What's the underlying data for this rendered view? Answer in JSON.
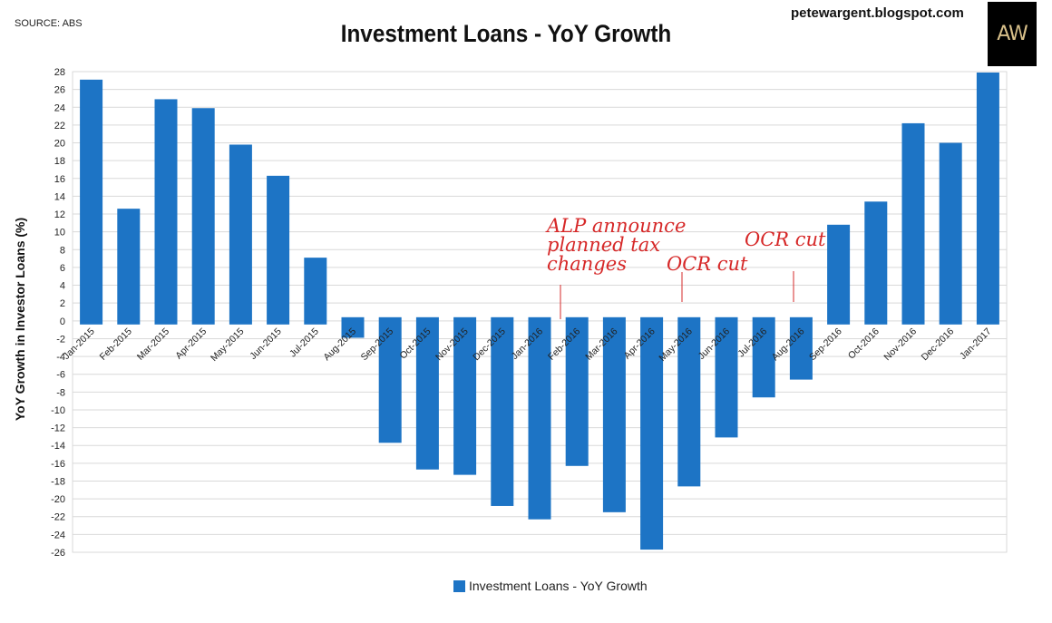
{
  "header": {
    "source": "SOURCE: ABS",
    "title": "Investment Loans - YoY Growth",
    "blog": "petewargent.blogspot.com",
    "logo_text": "AW"
  },
  "colors": {
    "bar": "#1d74c5",
    "annotation": "#d62828",
    "grid": "#d9d9d9"
  },
  "chart_data": {
    "type": "bar",
    "title": "Investment Loans - YoY Growth",
    "ylabel": "YoY Growth in Investor Loans (%)",
    "xlabel": "",
    "ylim": [
      -26,
      28
    ],
    "ytick_step": 2,
    "grid": true,
    "legend_position": "bottom",
    "categories": [
      "Jan-2015",
      "Feb-2015",
      "Mar-2015",
      "Apr-2015",
      "May-2015",
      "Jun-2015",
      "Jul-2015",
      "Aug-2015",
      "Sep-2015",
      "Oct-2015",
      "Nov-2015",
      "Dec-2015",
      "Jan-2016",
      "Feb-2016",
      "Mar-2016",
      "Apr-2016",
      "May-2016",
      "Jun-2016",
      "Jul-2016",
      "Aug-2016",
      "Sep-2016",
      "Oct-2016",
      "Nov-2016",
      "Dec-2016",
      "Jan-2017"
    ],
    "series": [
      {
        "name": "Investment Loans - YoY Growth",
        "values": [
          27.1,
          12.6,
          24.9,
          23.9,
          19.8,
          16.3,
          7.1,
          -1.9,
          -13.7,
          -16.7,
          -17.3,
          -20.8,
          -22.3,
          -16.3,
          -21.5,
          -25.7,
          -18.6,
          -13.1,
          -8.6,
          -6.6,
          10.8,
          13.4,
          22.2,
          20.0,
          27.9
        ]
      }
    ],
    "annotations": [
      {
        "lines": [
          "ALP announce",
          "planned tax",
          "changes"
        ],
        "at_category": "Jan-2016"
      },
      {
        "lines": [
          "OCR cut"
        ],
        "at_category": "Apr-2016"
      },
      {
        "lines": [
          "OCR cut"
        ],
        "at_category": "Jul-2016"
      }
    ]
  }
}
